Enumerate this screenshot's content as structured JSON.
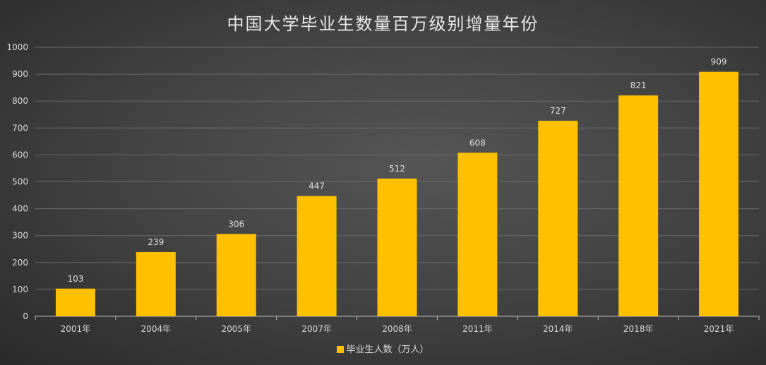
{
  "chart_data": {
    "type": "bar",
    "title": "中国大学毕业生数量百万级别增量年份",
    "categories": [
      "2001年",
      "2004年",
      "2005年",
      "2007年",
      "2008年",
      "2011年",
      "2014年",
      "2018年",
      "2021年"
    ],
    "series": [
      {
        "name": "毕业生人数（万人）",
        "values": [
          103,
          239,
          306,
          447,
          512,
          608,
          727,
          821,
          909
        ],
        "color": "#FFC000"
      }
    ],
    "ylim": [
      0,
      1000
    ],
    "yticks": [
      0,
      100,
      200,
      300,
      400,
      500,
      600,
      700,
      800,
      900,
      1000
    ],
    "grid": true,
    "legend": "bottom",
    "data_labels": true
  }
}
